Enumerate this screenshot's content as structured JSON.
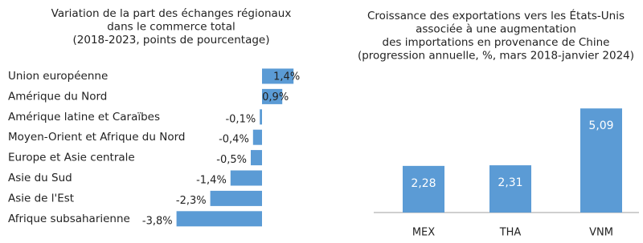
{
  "chart_data": [
    {
      "type": "hbar",
      "title": [
        "Variation de la part des échanges régionaux",
        "dans le commerce total",
        "(2018-2023, points de pourcentage)"
      ],
      "categories": [
        "Union européenne",
        "Amérique du Nord",
        "Amérique latine et Caraïbes",
        "Moyen-Orient et Afrique du Nord",
        "Europe et Asie centrale",
        "Asie du Sud",
        "Asie de l'Est",
        "Afrique subsaharienne"
      ],
      "values": [
        1.4,
        0.9,
        -0.1,
        -0.4,
        -0.5,
        -1.4,
        -2.3,
        -3.8
      ],
      "value_labels": [
        "1,4%",
        "0,9%",
        "-0,1%",
        "-0,4%",
        "-0,5%",
        "-1,4%",
        "-2,3%",
        "-3,8%"
      ],
      "color": "#5b9bd5"
    },
    {
      "type": "bar",
      "title": [
        "Croissance des exportations vers les États-Unis",
        "associée à une augmentation",
        "des importations en provenance de Chine",
        "(progression annuelle, %, mars 2018-janvier 2024)"
      ],
      "categories": [
        "MEX",
        "THA",
        "VNM"
      ],
      "values": [
        2.28,
        2.31,
        5.09
      ],
      "value_labels": [
        "2,28",
        "2,31",
        "5,09"
      ],
      "color": "#5b9bd5"
    }
  ]
}
